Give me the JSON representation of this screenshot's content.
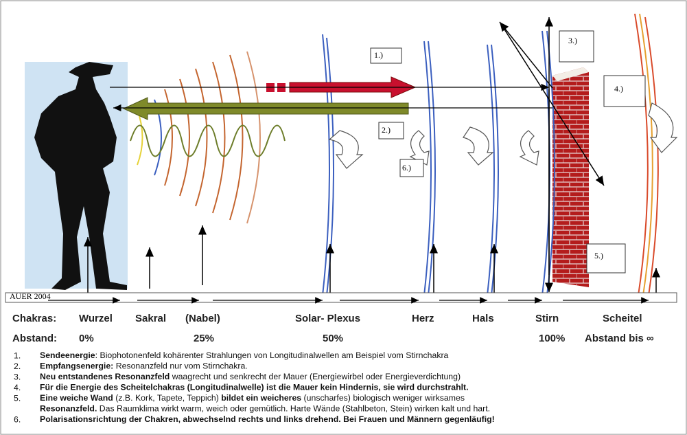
{
  "diagram": {
    "boxes": [
      "1.)",
      "2.)",
      "3.)",
      "4.)",
      "5.)",
      "6.)"
    ],
    "credit": "AUER 2004",
    "chakras": {
      "label": "Chakras:",
      "names": [
        "Wurzel",
        "Sakral",
        "(Nabel)",
        "Solar- Plexus",
        "Herz",
        "Hals",
        "Stirn",
        "Scheitel"
      ]
    },
    "distance": {
      "label": "Abstand:",
      "marks": [
        "0%",
        "25%",
        "50%",
        "100%",
        "Abstand bis ∞"
      ]
    },
    "legend": [
      {
        "number": "1.",
        "lines": [
          [
            {
              "text": "Sendeenergie",
              "bold": true
            },
            {
              "text": ": Biophotonenfeld kohärenter Strahlungen von Longitudinalwellen am Beispiel vom Stirnchakra",
              "bold": false
            }
          ]
        ]
      },
      {
        "number": "2.",
        "lines": [
          [
            {
              "text": "Empfangsenergie:",
              "bold": true
            },
            {
              "text": " Resonanzfeld nur vom Stirnchakra.",
              "bold": false
            }
          ]
        ]
      },
      {
        "number": "3.",
        "lines": [
          [
            {
              "text": "Neu entstandenes Resonanzfeld",
              "bold": true
            },
            {
              "text": " waagrecht und senkrecht der Mauer (Energiewirbel oder Energieverdichtung)",
              "bold": false
            }
          ]
        ]
      },
      {
        "number": "4.",
        "lines": [
          [
            {
              "text": "Für die Energie des Scheitelchakras (Longitudinalwelle) ist die Mauer kein Hindernis, sie wird durchstrahlt.",
              "bold": true
            }
          ]
        ]
      },
      {
        "number": "5.",
        "lines": [
          [
            {
              "text": "Eine weiche Wand",
              "bold": true
            },
            {
              "text": " (z.B. Kork, Tapete, Teppich) ",
              "bold": false
            },
            {
              "text": "bildet ein weicheres",
              "bold": true
            },
            {
              "text": " (unscharfes) biologisch weniger wirksames",
              "bold": false
            }
          ],
          [
            {
              "text": "Resonanzfeld.",
              "bold": true
            },
            {
              "text": " Das Raumklima wirkt  warm,  weich oder gemütlich. Harte Wände (Stahlbeton, Stein) wirken kalt und hart.",
              "bold": false
            }
          ]
        ]
      },
      {
        "number": "6.",
        "lines": [
          [
            {
              "text": "Polarisationsrichtung der Chakren, abwechselnd rechts und links drehend. Bei Frauen und Männern gegenläufig!",
              "bold": true
            }
          ]
        ]
      }
    ]
  }
}
